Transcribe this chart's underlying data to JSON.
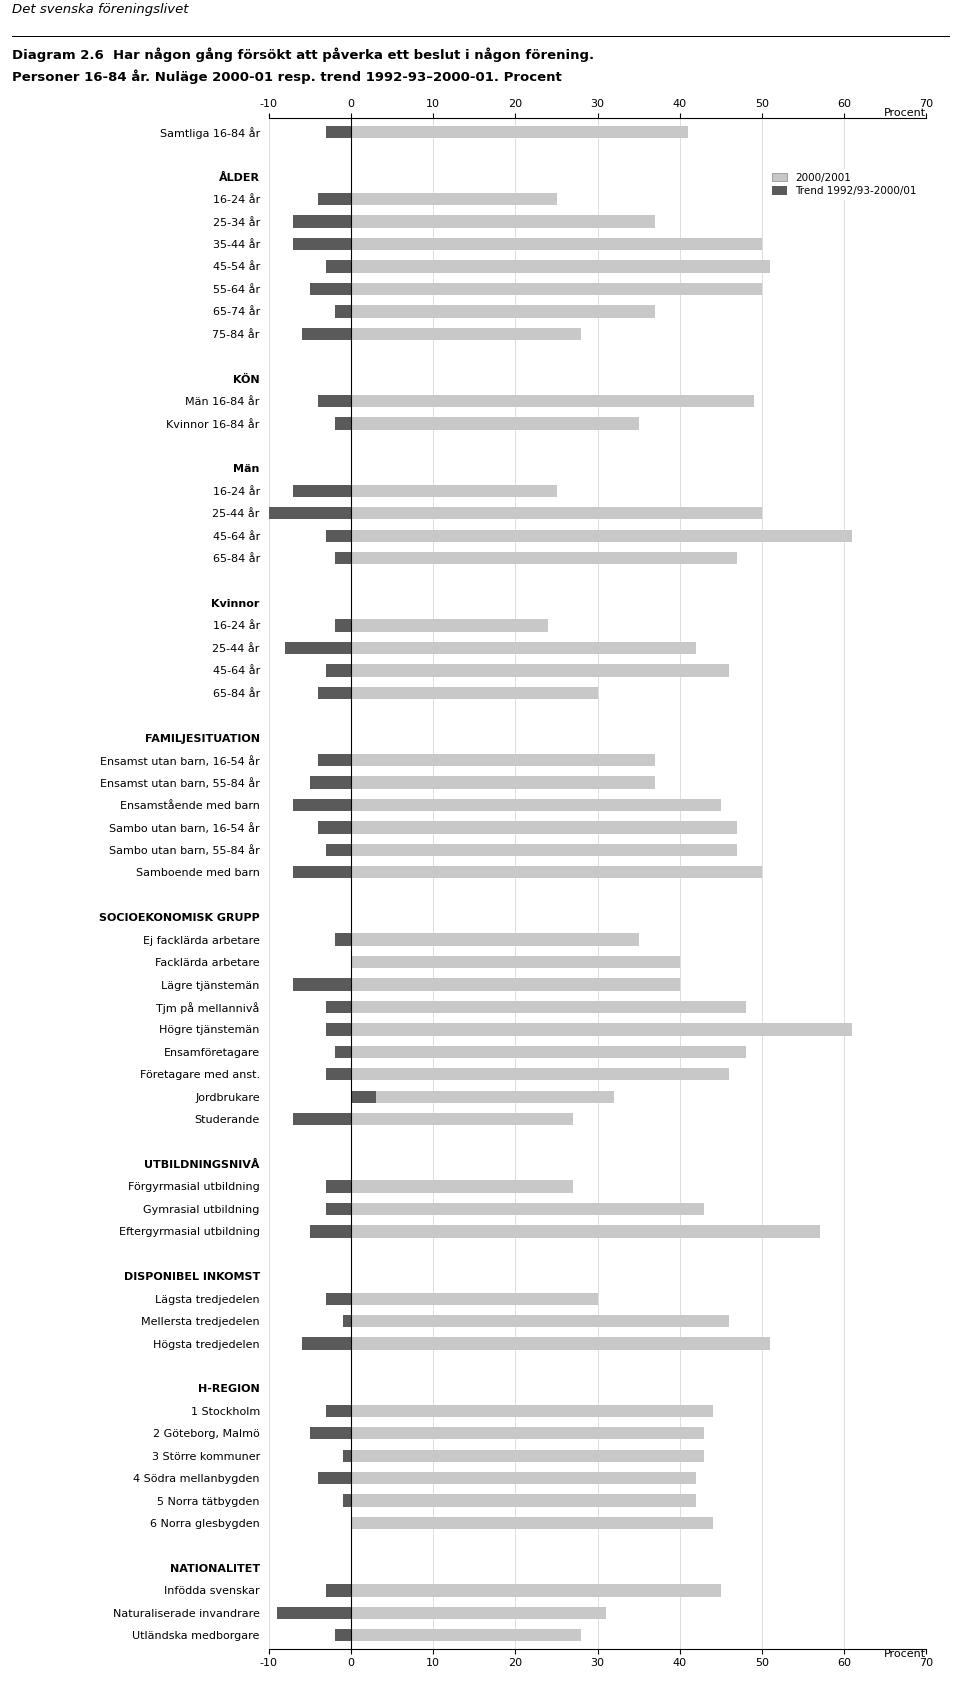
{
  "title_line1": "Diagram 2.6  Har någon gång försökt att påverka ett beslut i någon förening.",
  "title_line2": "Personer 16-84 år. Nuläge 2000-01 resp. trend 1992-93–2000-01. Procent",
  "header": "Det svenska föreningslivet",
  "xlabel": "Procent",
  "xlim": [
    -10,
    70
  ],
  "xticks": [
    -10,
    0,
    10,
    20,
    30,
    40,
    50,
    60,
    70
  ],
  "color_current": "#c8c8c8",
  "color_trend": "#5a5a5a",
  "legend_current": "2000/2001",
  "legend_trend": "Trend 1992/93-2000/01",
  "rows": [
    {
      "label": "Samtliga 16-84 år",
      "type": "data",
      "current": 41,
      "trend": -3
    },
    {
      "label": "",
      "type": "spacer",
      "current": null,
      "trend": null
    },
    {
      "label": "ÅLDER",
      "type": "header",
      "current": null,
      "trend": null
    },
    {
      "label": "16-24 år",
      "type": "data",
      "current": 25,
      "trend": -4
    },
    {
      "label": "25-34 år",
      "type": "data",
      "current": 37,
      "trend": -7
    },
    {
      "label": "35-44 år",
      "type": "data",
      "current": 50,
      "trend": -7
    },
    {
      "label": "45-54 år",
      "type": "data",
      "current": 51,
      "trend": -3
    },
    {
      "label": "55-64 år",
      "type": "data",
      "current": 50,
      "trend": -5
    },
    {
      "label": "65-74 år",
      "type": "data",
      "current": 37,
      "trend": -2
    },
    {
      "label": "75-84 år",
      "type": "data",
      "current": 28,
      "trend": -6
    },
    {
      "label": "",
      "type": "spacer",
      "current": null,
      "trend": null
    },
    {
      "label": "KÖN",
      "type": "header",
      "current": null,
      "trend": null
    },
    {
      "label": "Män 16-84 år",
      "type": "data",
      "current": 49,
      "trend": -4
    },
    {
      "label": "Kvinnor 16-84 år",
      "type": "data",
      "current": 35,
      "trend": -2
    },
    {
      "label": "",
      "type": "spacer",
      "current": null,
      "trend": null
    },
    {
      "label": "Män",
      "type": "header",
      "current": null,
      "trend": null
    },
    {
      "label": "16-24 år",
      "type": "data",
      "current": 25,
      "trend": -7
    },
    {
      "label": "25-44 år",
      "type": "data",
      "current": 50,
      "trend": -10
    },
    {
      "label": "45-64 år",
      "type": "data",
      "current": 61,
      "trend": -3
    },
    {
      "label": "65-84 år",
      "type": "data",
      "current": 47,
      "trend": -2
    },
    {
      "label": "",
      "type": "spacer",
      "current": null,
      "trend": null
    },
    {
      "label": "Kvinnor",
      "type": "header",
      "current": null,
      "trend": null
    },
    {
      "label": "16-24 år",
      "type": "data",
      "current": 24,
      "trend": -2
    },
    {
      "label": "25-44 år",
      "type": "data",
      "current": 42,
      "trend": -8
    },
    {
      "label": "45-64 år",
      "type": "data",
      "current": 46,
      "trend": -3
    },
    {
      "label": "65-84 år",
      "type": "data",
      "current": 30,
      "trend": -4
    },
    {
      "label": "",
      "type": "spacer",
      "current": null,
      "trend": null
    },
    {
      "label": "FAMILJESITUATION",
      "type": "header",
      "current": null,
      "trend": null
    },
    {
      "label": "Ensamst utan barn, 16-54 år",
      "type": "data",
      "current": 37,
      "trend": -4
    },
    {
      "label": "Ensamst utan barn, 55-84 år",
      "type": "data",
      "current": 37,
      "trend": -5
    },
    {
      "label": "Ensamstående med barn",
      "type": "data",
      "current": 45,
      "trend": -7
    },
    {
      "label": "Sambo utan barn, 16-54 år",
      "type": "data",
      "current": 47,
      "trend": -4
    },
    {
      "label": "Sambo utan barn, 55-84 år",
      "type": "data",
      "current": 47,
      "trend": -3
    },
    {
      "label": "Samboende med barn",
      "type": "data",
      "current": 50,
      "trend": -7
    },
    {
      "label": "",
      "type": "spacer",
      "current": null,
      "trend": null
    },
    {
      "label": "SOCIOEKONOMISK GRUPP",
      "type": "header",
      "current": null,
      "trend": null
    },
    {
      "label": "Ej facklärda arbetare",
      "type": "data",
      "current": 35,
      "trend": -2
    },
    {
      "label": "Facklärda arbetare",
      "type": "data",
      "current": 40,
      "trend": 0
    },
    {
      "label": "Lägre tjänstemän",
      "type": "data",
      "current": 40,
      "trend": -7
    },
    {
      "label": "Tjm på mellannivå",
      "type": "data",
      "current": 48,
      "trend": -3
    },
    {
      "label": "Högre tjänstemän",
      "type": "data",
      "current": 61,
      "trend": -3
    },
    {
      "label": "Ensamföretagare",
      "type": "data",
      "current": 48,
      "trend": -2
    },
    {
      "label": "Företagare med anst.",
      "type": "data",
      "current": 46,
      "trend": -3
    },
    {
      "label": "Jordbrukare",
      "type": "data",
      "current": 32,
      "trend": 3
    },
    {
      "label": "Studerande",
      "type": "data",
      "current": 27,
      "trend": -7
    },
    {
      "label": "",
      "type": "spacer",
      "current": null,
      "trend": null
    },
    {
      "label": "UTBILDNINGSNIVÅ",
      "type": "header",
      "current": null,
      "trend": null
    },
    {
      "label": "Förgyrmasial utbildning",
      "type": "data",
      "current": 27,
      "trend": -3
    },
    {
      "label": "Gymrasial utbildning",
      "type": "data",
      "current": 43,
      "trend": -3
    },
    {
      "label": "Eftergyrmasial utbildning",
      "type": "data",
      "current": 57,
      "trend": -5
    },
    {
      "label": "",
      "type": "spacer",
      "current": null,
      "trend": null
    },
    {
      "label": "DISPONIBEL INKOMST",
      "type": "header",
      "current": null,
      "trend": null
    },
    {
      "label": "Lägsta tredjedelen",
      "type": "data",
      "current": 30,
      "trend": -3
    },
    {
      "label": "Mellersta tredjedelen",
      "type": "data",
      "current": 46,
      "trend": -1
    },
    {
      "label": "Högsta tredjedelen",
      "type": "data",
      "current": 51,
      "trend": -6
    },
    {
      "label": "",
      "type": "spacer",
      "current": null,
      "trend": null
    },
    {
      "label": "H-REGION",
      "type": "header",
      "current": null,
      "trend": null
    },
    {
      "label": "1 Stockholm",
      "type": "data",
      "current": 44,
      "trend": -3
    },
    {
      "label": "2 Göteborg, Malmö",
      "type": "data",
      "current": 43,
      "trend": -5
    },
    {
      "label": "3 Större kommuner",
      "type": "data",
      "current": 43,
      "trend": -1
    },
    {
      "label": "4 Södra mellanbygden",
      "type": "data",
      "current": 42,
      "trend": -4
    },
    {
      "label": "5 Norra tätbygden",
      "type": "data",
      "current": 42,
      "trend": -1
    },
    {
      "label": "6 Norra glesbygden",
      "type": "data",
      "current": 44,
      "trend": 0
    },
    {
      "label": "",
      "type": "spacer",
      "current": null,
      "trend": null
    },
    {
      "label": "NATIONALITET",
      "type": "header",
      "current": null,
      "trend": null
    },
    {
      "label": "Infödda svenskar",
      "type": "data",
      "current": 45,
      "trend": -3
    },
    {
      "label": "Naturaliserade invandrare",
      "type": "data",
      "current": 31,
      "trend": -9
    },
    {
      "label": "Utländska medborgare",
      "type": "data",
      "current": 28,
      "trend": -2
    }
  ]
}
